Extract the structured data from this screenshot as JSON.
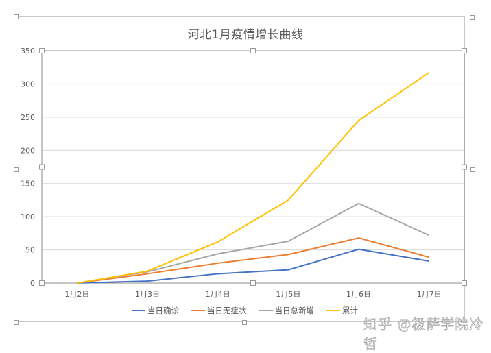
{
  "chart_data": {
    "type": "line",
    "title": "河北1月疫情增长曲线",
    "xlabel": "",
    "ylabel": "",
    "categories": [
      "1月2日",
      "1月3日",
      "1月4日",
      "1月5日",
      "1月6日",
      "1月7日"
    ],
    "series": [
      {
        "name": "当日确诊",
        "color": "#4472c4",
        "values": [
          0,
          3,
          14,
          20,
          51,
          33
        ]
      },
      {
        "name": "当日无症状",
        "color": "#ed7d31",
        "values": [
          0,
          14,
          30,
          43,
          68,
          39
        ]
      },
      {
        "name": "当日总新增",
        "color": "#a5a5a5",
        "values": [
          0,
          17,
          44,
          63,
          120,
          72
        ]
      },
      {
        "name": "累计",
        "color": "#ffc000",
        "values": [
          0,
          18,
          62,
          125,
          245,
          317
        ]
      }
    ],
    "yticks": [
      0,
      50,
      100,
      150,
      200,
      250,
      300,
      350
    ],
    "ylim": [
      0,
      350
    ],
    "grid": true,
    "legend_position": "bottom"
  },
  "legend": {
    "items": [
      {
        "label": "当日确诊",
        "color": "#4472c4"
      },
      {
        "label": "当日无症状",
        "color": "#ed7d31"
      },
      {
        "label": "当日总新增",
        "color": "#a5a5a5"
      },
      {
        "label": "累计",
        "color": "#ffc000"
      }
    ]
  },
  "watermark": "知乎 @极萨学院冷哲"
}
